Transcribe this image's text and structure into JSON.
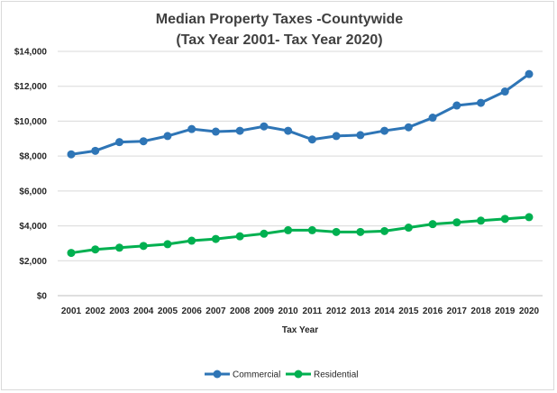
{
  "chart_data": {
    "type": "line",
    "title_line1": "Median Property Taxes -Countywide",
    "title_line2": "(Tax Year 2001- Tax Year 2020)",
    "xlabel": "Tax Year",
    "ylabel": "",
    "categories": [
      "2001",
      "2002",
      "2003",
      "2004",
      "2005",
      "2006",
      "2007",
      "2008",
      "2009",
      "2010",
      "2011",
      "2012",
      "2013",
      "2014",
      "2015",
      "2016",
      "2017",
      "2018",
      "2019",
      "2020"
    ],
    "ylim": [
      0,
      14000
    ],
    "yticks": [
      0,
      2000,
      4000,
      6000,
      8000,
      10000,
      12000,
      14000
    ],
    "ytick_labels": [
      "$0",
      "$2,000",
      "$4,000",
      "$6,000",
      "$8,000",
      "$10,000",
      "$12,000",
      "$14,000"
    ],
    "grid": "horizontal",
    "legend_position": "bottom",
    "series": [
      {
        "name": "Commercial",
        "color": "#2e75b6",
        "values": [
          8100,
          8300,
          8800,
          8850,
          9150,
          9550,
          9400,
          9450,
          9700,
          9450,
          8950,
          9150,
          9200,
          9450,
          9650,
          10200,
          10900,
          11050,
          11700,
          12700
        ]
      },
      {
        "name": "Residential",
        "color": "#00b050",
        "values": [
          2450,
          2650,
          2750,
          2850,
          2950,
          3150,
          3250,
          3400,
          3550,
          3750,
          3750,
          3650,
          3650,
          3700,
          3900,
          4100,
          4200,
          4300,
          4400,
          4500
        ]
      }
    ]
  }
}
